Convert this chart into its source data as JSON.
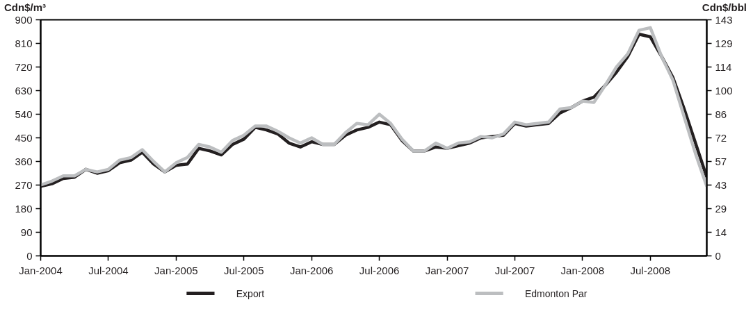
{
  "chart_data": {
    "type": "line",
    "ylabel": "Cdn$/m³",
    "y2label": "Cdn$/bbl",
    "x": [
      "2004-01",
      "2004-02",
      "2004-03",
      "2004-04",
      "2004-05",
      "2004-06",
      "2004-07",
      "2004-08",
      "2004-09",
      "2004-10",
      "2004-11",
      "2004-12",
      "2005-01",
      "2005-02",
      "2005-03",
      "2005-04",
      "2005-05",
      "2005-06",
      "2005-07",
      "2005-08",
      "2005-09",
      "2005-10",
      "2005-11",
      "2005-12",
      "2006-01",
      "2006-02",
      "2006-03",
      "2006-04",
      "2006-05",
      "2006-06",
      "2006-07",
      "2006-08",
      "2006-09",
      "2006-10",
      "2006-11",
      "2006-12",
      "2007-01",
      "2007-02",
      "2007-03",
      "2007-04",
      "2007-05",
      "2007-06",
      "2007-07",
      "2007-08",
      "2007-09",
      "2007-10",
      "2007-11",
      "2007-12",
      "2008-01",
      "2008-02",
      "2008-03",
      "2008-04",
      "2008-05",
      "2008-06",
      "2008-07",
      "2008-08",
      "2008-09",
      "2008-10",
      "2008-11",
      "2008-12"
    ],
    "series": [
      {
        "name": "Export",
        "color": "#231f20",
        "values": [
          265,
          275,
          295,
          300,
          330,
          315,
          325,
          355,
          365,
          395,
          350,
          320,
          345,
          350,
          410,
          400,
          385,
          425,
          445,
          490,
          480,
          465,
          430,
          415,
          435,
          425,
          425,
          460,
          480,
          490,
          510,
          500,
          440,
          400,
          400,
          415,
          410,
          420,
          430,
          450,
          455,
          460,
          505,
          495,
          500,
          505,
          545,
          565,
          590,
          605,
          650,
          700,
          760,
          845,
          835,
          760,
          680,
          560,
          430,
          300
        ]
      },
      {
        "name": "Edmonton Par",
        "color": "#bcbec0",
        "values": [
          270,
          285,
          305,
          305,
          330,
          320,
          330,
          365,
          375,
          405,
          360,
          320,
          355,
          375,
          425,
          415,
          395,
          440,
          460,
          495,
          495,
          475,
          450,
          430,
          450,
          425,
          425,
          470,
          505,
          500,
          540,
          505,
          445,
          400,
          400,
          430,
          410,
          430,
          435,
          455,
          450,
          465,
          510,
          500,
          505,
          510,
          560,
          565,
          590,
          585,
          650,
          720,
          770,
          860,
          870,
          760,
          670,
          530,
          390,
          265
        ]
      }
    ],
    "xlim": [
      "2004-01",
      "2008-12"
    ],
    "xticks": [
      {
        "value": "2004-01",
        "label": "Jan-2004"
      },
      {
        "value": "2004-07",
        "label": "Jul-2004"
      },
      {
        "value": "2005-01",
        "label": "Jan-2005"
      },
      {
        "value": "2005-07",
        "label": "Jul-2005"
      },
      {
        "value": "2006-01",
        "label": "Jan-2006"
      },
      {
        "value": "2006-07",
        "label": "Jul-2006"
      },
      {
        "value": "2007-01",
        "label": "Jan-2007"
      },
      {
        "value": "2007-07",
        "label": "Jul-2007"
      },
      {
        "value": "2008-01",
        "label": "Jan-2008"
      },
      {
        "value": "2008-07",
        "label": "Jul-2008"
      }
    ],
    "ylim": [
      0,
      900
    ],
    "yticks": [
      0,
      90,
      180,
      270,
      360,
      450,
      540,
      630,
      720,
      810,
      900
    ],
    "y2lim": [
      0,
      143.1
    ],
    "y2ticks": [
      0,
      {
        "value": 14.31,
        "label": "14"
      },
      {
        "value": 28.62,
        "label": "29"
      },
      {
        "value": 42.93,
        "label": "43"
      },
      {
        "value": 57.24,
        "label": "57"
      },
      {
        "value": 71.55,
        "label": "72"
      },
      {
        "value": 85.86,
        "label": "86"
      },
      {
        "value": 100.17,
        "label": "100"
      },
      {
        "value": 114.48,
        "label": "114"
      },
      {
        "value": 128.79,
        "label": "129"
      },
      {
        "value": 143.1,
        "label": "143"
      }
    ],
    "grid": false,
    "legend": "bottom",
    "marker": "none",
    "line_style": "solid"
  }
}
